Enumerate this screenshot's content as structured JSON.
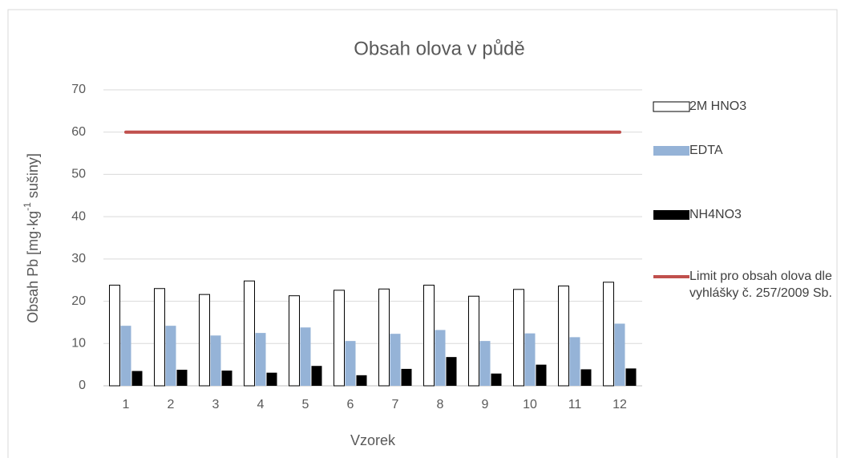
{
  "chart_data": {
    "type": "bar",
    "title": "Obsah olova v půdě",
    "xlabel": "Vzorek",
    "ylabel_parts": [
      "Obsah Pb [mg·kg",
      "-1",
      " sušiny]"
    ],
    "categories": [
      "1",
      "2",
      "3",
      "4",
      "5",
      "6",
      "7",
      "8",
      "9",
      "10",
      "11",
      "12"
    ],
    "series": [
      {
        "name": "2M HNO3",
        "type": "bar",
        "color": "#ffffff",
        "stroke": "#000000",
        "values": [
          23.8,
          23.0,
          21.6,
          24.8,
          21.3,
          22.6,
          22.9,
          23.8,
          21.2,
          22.8,
          23.6,
          24.5
        ]
      },
      {
        "name": "EDTA",
        "type": "bar",
        "color": "#95b3d7",
        "values": [
          14.2,
          14.2,
          11.9,
          12.5,
          13.8,
          10.6,
          12.3,
          13.2,
          10.6,
          12.4,
          11.5,
          14.7
        ]
      },
      {
        "name": "NH4NO3",
        "type": "bar",
        "color": "#000000",
        "values": [
          3.5,
          3.8,
          3.6,
          3.1,
          4.7,
          2.5,
          4.0,
          6.8,
          2.9,
          5.0,
          3.9,
          4.1
        ]
      },
      {
        "name": "Limit pro obsah olova dle vyhlášky č. 257/2009 Sb.",
        "type": "line",
        "color": "#c0504d",
        "values": [
          60,
          60,
          60,
          60,
          60,
          60,
          60,
          60,
          60,
          60,
          60,
          60
        ]
      }
    ],
    "ylim": [
      0,
      70
    ],
    "yticks": [
      0,
      10,
      20,
      30,
      40,
      50,
      60,
      70
    ],
    "grid": true,
    "legend": "right"
  }
}
